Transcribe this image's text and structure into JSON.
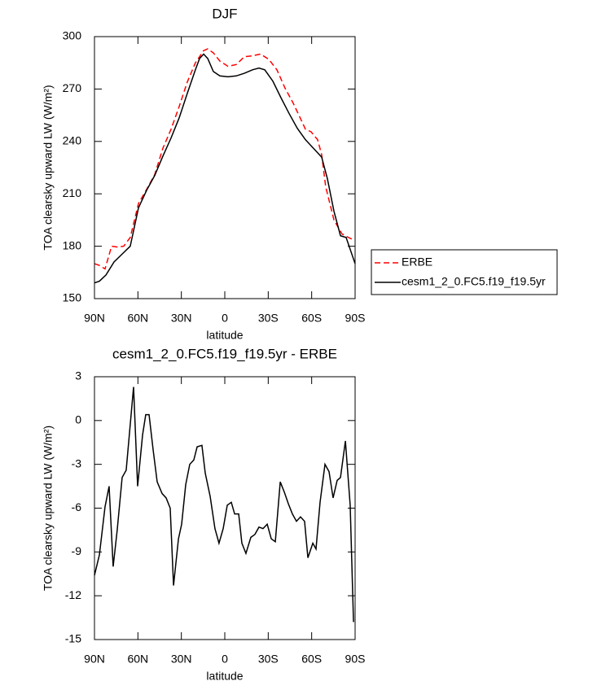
{
  "chart_data": [
    {
      "type": "line",
      "title": "DJF",
      "xlabel": "latitude",
      "ylabel": "TOA clearsky upward LW (W/m²)",
      "xlim": [
        90,
        -90
      ],
      "ylim": [
        150,
        300
      ],
      "xticks": [
        {
          "value": 90,
          "label": "90N"
        },
        {
          "value": 60,
          "label": "60N"
        },
        {
          "value": 30,
          "label": "30N"
        },
        0,
        {
          "value": -30,
          "label": "30S"
        },
        {
          "value": -60,
          "label": "60S"
        },
        {
          "value": -90,
          "label": "90S"
        }
      ],
      "yticks": [
        150,
        180,
        210,
        240,
        270,
        300
      ],
      "legend": "right",
      "series": [
        {
          "name": "ERBE",
          "color": "#ff0000",
          "style": "dashed",
          "x": [
            90,
            86.6,
            82.7,
            78.2,
            73.7,
            69.8,
            65.3,
            59.6,
            54.0,
            48.4,
            42.8,
            37.1,
            31.5,
            25.9,
            20.3,
            14.6,
            11.8,
            7.9,
            3.4,
            -2.2,
            -7.9,
            -13.5,
            -19.1,
            -24.7,
            -30.4,
            -36.0,
            -41.6,
            -47.2,
            -52.9,
            -55.7,
            -59.6,
            -64.1,
            -66.9,
            -69.7,
            -75.4,
            -81.0,
            -86.6,
            -90
          ],
          "values": [
            170,
            169,
            167,
            180,
            179.5,
            180,
            185,
            204.5,
            212.5,
            221,
            236,
            247,
            260,
            274,
            285,
            292,
            293,
            290.7,
            286,
            283,
            284,
            288.5,
            289,
            290,
            287,
            281,
            270.5,
            262,
            252,
            247,
            245.5,
            241,
            232.5,
            214,
            195,
            187,
            184.5,
            183.5
          ]
        },
        {
          "name": "cesm1_2_0.FC5.f19_f19.5yr",
          "color": "#000000",
          "style": "solid",
          "x": [
            90,
            86.6,
            82.1,
            76.5,
            70.9,
            65.3,
            59.6,
            54.0,
            48.4,
            42.8,
            37.1,
            31.5,
            25.9,
            20.3,
            17.4,
            14.6,
            11.8,
            7.9,
            3.4,
            -2.2,
            -7.9,
            -13.5,
            -19.1,
            -23.6,
            -27.6,
            -33.2,
            -38.8,
            -44.4,
            -50.1,
            -55.7,
            -61.3,
            -66.9,
            -70.9,
            -75.4,
            -79.9,
            -83.8,
            -90
          ],
          "values": [
            159,
            160,
            163.5,
            171,
            175.5,
            180,
            202,
            212,
            220.5,
            231.5,
            242,
            253.5,
            267.5,
            281,
            287.5,
            290,
            287.5,
            280,
            277.5,
            277,
            277.5,
            279,
            281,
            282,
            281,
            274.5,
            265,
            256,
            247.5,
            241,
            236,
            231,
            218.5,
            200,
            186,
            185,
            170
          ]
        }
      ]
    },
    {
      "type": "line",
      "title": "cesm1_2_0.FC5.f19_f19.5yr - ERBE",
      "xlabel": "latitude",
      "ylabel": "TOA clearsky upward LW (W/m²)",
      "xlim": [
        90,
        -90
      ],
      "ylim": [
        -15,
        3
      ],
      "xticks": [
        {
          "value": 90,
          "label": "90N"
        },
        {
          "value": 60,
          "label": "60N"
        },
        {
          "value": 30,
          "label": "30N"
        },
        0,
        {
          "value": -30,
          "label": "30S"
        },
        {
          "value": -60,
          "label": "60S"
        },
        {
          "value": -90,
          "label": "90S"
        }
      ],
      "yticks": [
        -15,
        -12,
        -9,
        -6,
        -3,
        0,
        3
      ],
      "series": [
        {
          "color": "#000000",
          "style": "solid",
          "x": [
            90,
            86.6,
            82.7,
            79.9,
            77.1,
            74.3,
            70.9,
            68.1,
            64.7,
            63.0,
            60.2,
            56.8,
            54.6,
            52.3,
            49.5,
            46.7,
            43.3,
            40.5,
            37.7,
            35.4,
            32.0,
            29.8,
            27.0,
            24.2,
            21.4,
            19.1,
            15.8,
            13.5,
            10.1,
            6.8,
            4.0,
            1.1,
            -1.7,
            -4.5,
            -6.8,
            -9.6,
            -11.8,
            -14.6,
            -18.0,
            -20.8,
            -23.6,
            -26.4,
            -29.3,
            -32.1,
            -34.9,
            -38.3,
            -41.1,
            -43.9,
            -46.7,
            -49.5,
            -52.3,
            -55.1,
            -57.4,
            -60.8,
            -63.0,
            -65.8,
            -69.2,
            -72.0,
            -74.8,
            -77.6,
            -79.9,
            -83.3,
            -86.6,
            -88.9
          ],
          "values": [
            -10.6,
            -9.2,
            -5.9,
            -4.5,
            -10.0,
            -7.5,
            -3.9,
            -3.4,
            0.4,
            2.3,
            -4.5,
            -1.0,
            0.4,
            0.4,
            -2.0,
            -4.2,
            -5.0,
            -5.3,
            -6.0,
            -11.3,
            -8.1,
            -7.1,
            -4.4,
            -3.0,
            -2.7,
            -1.8,
            -1.7,
            -3.6,
            -5.2,
            -7.4,
            -8.4,
            -7.4,
            -5.8,
            -5.6,
            -6.4,
            -6.4,
            -8.4,
            -9.1,
            -8.0,
            -7.8,
            -7.3,
            -7.4,
            -7.1,
            -8.1,
            -8.3,
            -4.2,
            -4.9,
            -5.7,
            -6.4,
            -6.9,
            -6.6,
            -6.9,
            -9.4,
            -8.4,
            -8.8,
            -5.6,
            -3.0,
            -3.5,
            -5.3,
            -4.1,
            -3.9,
            -1.4,
            -5.8,
            -13.8
          ]
        }
      ]
    }
  ]
}
